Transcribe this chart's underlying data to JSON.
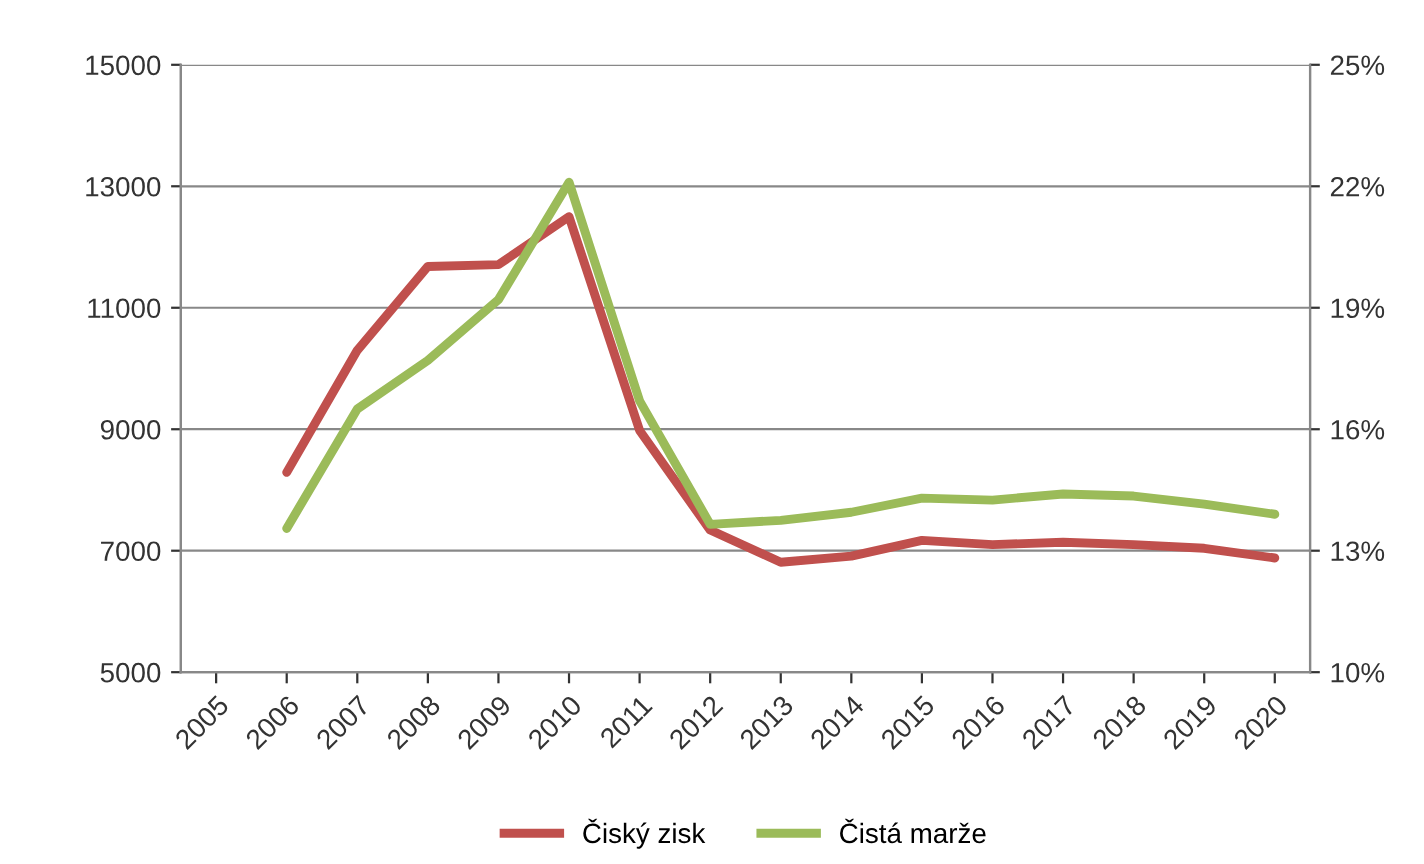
{
  "chart_data": {
    "type": "line",
    "categories": [
      "2005",
      "2006",
      "2007",
      "2008",
      "2009",
      "2010",
      "2011",
      "2012",
      "2013",
      "2014",
      "2015",
      "2016",
      "2017",
      "2018",
      "2019",
      "2020"
    ],
    "series": [
      {
        "name": "Čiský zisk",
        "color": "#c0504d",
        "values": [
          null,
          8290,
          10300,
          11680,
          11710,
          12500,
          8980,
          7340,
          6810,
          6910,
          7170,
          7100,
          7140,
          7100,
          7040,
          6880
        ]
      },
      {
        "name": "Čistá marže",
        "color": "#9bbb59",
        "axis": "y2",
        "values": [
          null,
          13.55,
          16.5,
          17.7,
          19.2,
          22.1,
          16.7,
          13.65,
          13.75,
          13.95,
          14.3,
          14.25,
          14.4,
          14.35,
          14.15,
          13.9
        ]
      }
    ],
    "ylim": [
      5000,
      15000
    ],
    "yticks": [
      5000,
      7000,
      9000,
      11000,
      13000,
      15000
    ],
    "y2lim": [
      10,
      25
    ],
    "y2ticks": [
      {
        "value": 10,
        "label": "10%"
      },
      {
        "value": 13,
        "label": "13%"
      },
      {
        "value": 16,
        "label": "16%"
      },
      {
        "value": 19,
        "label": "19%"
      },
      {
        "value": 22,
        "label": "22%"
      },
      {
        "value": 25,
        "label": "25%"
      }
    ],
    "grid": "y",
    "legend": "bottom",
    "line_style": "solid",
    "marker": "none"
  }
}
